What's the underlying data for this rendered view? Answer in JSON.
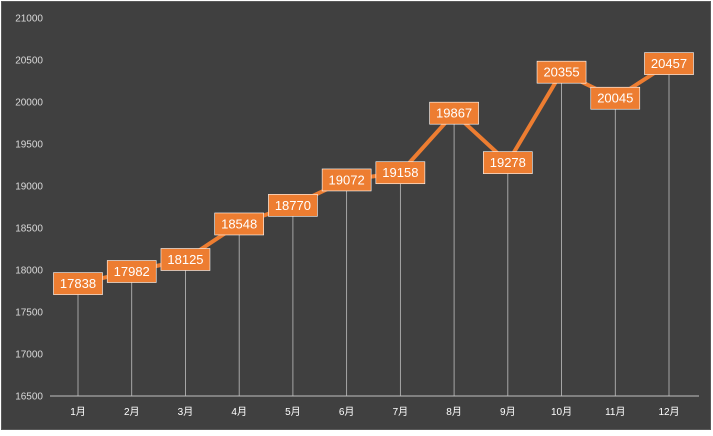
{
  "chart_data": {
    "type": "line",
    "title": "",
    "xlabel": "",
    "ylabel": "",
    "categories": [
      "1月",
      "2月",
      "3月",
      "4月",
      "5月",
      "6月",
      "7月",
      "8月",
      "9月",
      "10月",
      "11月",
      "12月"
    ],
    "series": [
      {
        "values": [
          17838,
          17982,
          18125,
          18548,
          18770,
          19072,
          19158,
          19867,
          19278,
          20355,
          20045,
          20457
        ]
      }
    ],
    "ylim": [
      16500,
      21000
    ],
    "yticks": [
      16500,
      17000,
      17500,
      18000,
      18500,
      19000,
      19500,
      20000,
      20500,
      21000
    ],
    "data_labels": true,
    "drop_lines": true,
    "grid": false,
    "legend": "none",
    "colors": {
      "background": "#404040",
      "line": "#ed7d31",
      "label_fill": "#ed7d31",
      "label_text": "#ffffff",
      "axis_text": "#d9d9d9",
      "drop_line": "#bfbfbf"
    }
  }
}
